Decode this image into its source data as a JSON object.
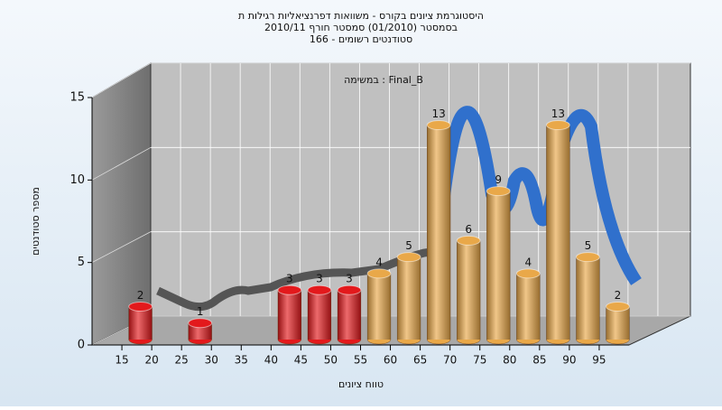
{
  "chart_data": {
    "type": "histogram",
    "title": [
      "היסטוגרמת ציונים בקורס - משוואות דפרנציאליות רגילות ת",
      "בסמסטר  (01/2010)  סמסטר חורף  2010/11",
      "סטודנטים רשומים - 166"
    ],
    "annotation": "במשימה : Final_B",
    "x_label": "טווח ציונים",
    "y_label": "מספר סטודנטים",
    "bins": [
      15,
      20,
      25,
      30,
      35,
      40,
      45,
      50,
      55,
      60,
      65,
      70,
      75,
      80,
      85,
      90,
      95,
      100
    ],
    "counts": [
      2,
      0,
      1,
      0,
      0,
      3,
      3,
      3,
      4,
      5,
      13,
      6,
      9,
      4,
      13,
      5,
      2
    ],
    "colors": [
      "#e3191c",
      "#e3191c",
      "#e3191c",
      "#e3191c",
      "#e3191c",
      "#e3191c",
      "#e3191c",
      "#e3191c",
      "#e9a849",
      "#e9a849",
      "#e9a849",
      "#e9a849",
      "#e9a849",
      "#e9a849",
      "#e9a849",
      "#e9a849",
      "#e9a849"
    ],
    "xlim": [
      10,
      100
    ],
    "xticks": [
      15,
      20,
      25,
      30,
      35,
      40,
      45,
      50,
      55,
      60,
      65,
      70,
      75,
      80,
      85,
      90,
      95
    ],
    "ylim": [
      0,
      15
    ],
    "yticks": [
      0,
      5,
      10,
      15
    ],
    "grid": true
  }
}
